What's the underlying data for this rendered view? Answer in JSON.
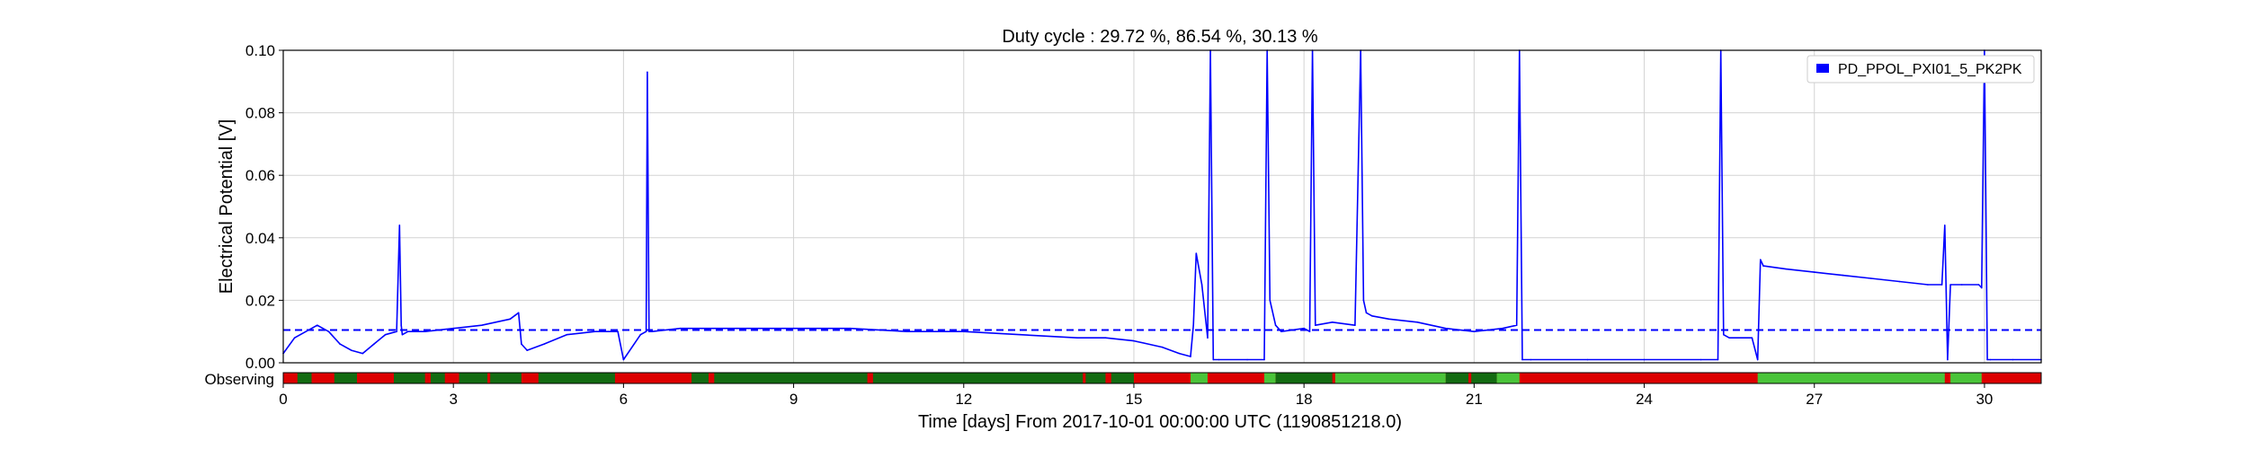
{
  "chart_data": {
    "type": "line",
    "title": "Duty cycle : 29.72 %, 86.54 %, 30.13 %",
    "xlabel": "Time [days] From 2017-10-01 00:00:00 UTC (1190851218.0)",
    "ylabel": "Electrical Potential [V]",
    "xlim": [
      0,
      31
    ],
    "ylim": [
      0,
      0.1
    ],
    "x_ticks": [
      0,
      3,
      6,
      9,
      12,
      15,
      18,
      21,
      24,
      27,
      30
    ],
    "y_ticks": [
      0.0,
      0.02,
      0.04,
      0.06,
      0.08,
      0.1
    ],
    "y_tick_labels": [
      "0.00",
      "0.02",
      "0.04",
      "0.06",
      "0.08",
      "0.10"
    ],
    "grid": true,
    "legend_position": "top-right",
    "threshold": {
      "value": 0.0105,
      "style": "dashed",
      "color": "#0000ff"
    },
    "series": [
      {
        "name": "PD_PPOL_PXI01_5_PK2PK",
        "color": "#0000ff",
        "x": [
          0.0,
          0.2,
          0.4,
          0.6,
          0.8,
          1.0,
          1.2,
          1.4,
          1.6,
          1.8,
          2.0,
          2.05,
          2.08,
          2.1,
          2.2,
          2.5,
          3.0,
          3.5,
          4.0,
          4.15,
          4.2,
          4.3,
          4.6,
          5.0,
          5.5,
          5.9,
          6.0,
          6.3,
          6.4,
          6.42,
          6.45,
          6.5,
          7.0,
          8.0,
          9.0,
          10.0,
          11.0,
          12.0,
          13.0,
          14.0,
          14.5,
          15.0,
          15.5,
          15.8,
          16.0,
          16.05,
          16.1,
          16.2,
          16.3,
          16.35,
          16.4,
          16.5,
          17.0,
          17.3,
          17.35,
          17.4,
          17.5,
          17.6,
          18.0,
          18.1,
          18.15,
          18.2,
          18.5,
          18.9,
          19.0,
          19.05,
          19.1,
          19.2,
          19.5,
          20.0,
          20.5,
          21.0,
          21.5,
          21.75,
          21.8,
          21.85,
          22.0,
          23.0,
          24.0,
          25.0,
          25.3,
          25.35,
          25.4,
          25.5,
          25.9,
          26.0,
          26.05,
          26.1,
          26.5,
          27.0,
          27.5,
          28.0,
          28.5,
          29.0,
          29.25,
          29.3,
          29.35,
          29.4,
          29.6,
          29.9,
          29.95,
          30.0,
          30.05,
          30.1,
          30.5,
          31.0
        ],
        "y": [
          0.003,
          0.008,
          0.01,
          0.012,
          0.01,
          0.006,
          0.004,
          0.003,
          0.006,
          0.009,
          0.01,
          0.044,
          0.012,
          0.009,
          0.01,
          0.01,
          0.011,
          0.012,
          0.014,
          0.016,
          0.006,
          0.004,
          0.006,
          0.009,
          0.01,
          0.01,
          0.001,
          0.009,
          0.01,
          0.093,
          0.01,
          0.01,
          0.011,
          0.011,
          0.011,
          0.011,
          0.01,
          0.01,
          0.009,
          0.008,
          0.008,
          0.007,
          0.005,
          0.003,
          0.002,
          0.012,
          0.035,
          0.025,
          0.008,
          0.1,
          0.001,
          0.001,
          0.001,
          0.001,
          0.1,
          0.02,
          0.012,
          0.01,
          0.011,
          0.01,
          0.1,
          0.012,
          0.013,
          0.012,
          0.1,
          0.02,
          0.016,
          0.015,
          0.014,
          0.013,
          0.011,
          0.01,
          0.011,
          0.012,
          0.1,
          0.001,
          0.001,
          0.001,
          0.001,
          0.001,
          0.001,
          0.1,
          0.009,
          0.008,
          0.008,
          0.001,
          0.033,
          0.031,
          0.03,
          0.029,
          0.028,
          0.027,
          0.026,
          0.025,
          0.025,
          0.044,
          0.001,
          0.025,
          0.025,
          0.025,
          0.024,
          0.1,
          0.001,
          0.001,
          0.001,
          0.001
        ]
      }
    ],
    "segments": {
      "label": "Observing",
      "colors": {
        "off": "#dd0000",
        "on": "#4ac43a",
        "flag": "#136b12"
      },
      "rows": [
        {
          "start": 0.0,
          "end": 31.0,
          "state": "off"
        },
        {
          "start": 0.25,
          "end": 0.5,
          "state": "flag"
        },
        {
          "start": 0.9,
          "end": 1.3,
          "state": "flag"
        },
        {
          "start": 1.95,
          "end": 2.5,
          "state": "flag"
        },
        {
          "start": 2.6,
          "end": 2.85,
          "state": "flag"
        },
        {
          "start": 3.1,
          "end": 3.6,
          "state": "flag"
        },
        {
          "start": 3.65,
          "end": 4.2,
          "state": "flag"
        },
        {
          "start": 4.5,
          "end": 5.85,
          "state": "flag"
        },
        {
          "start": 7.2,
          "end": 7.5,
          "state": "flag"
        },
        {
          "start": 7.6,
          "end": 8.0,
          "state": "flag"
        },
        {
          "start": 8.0,
          "end": 10.3,
          "state": "flag"
        },
        {
          "start": 10.4,
          "end": 14.1,
          "state": "flag"
        },
        {
          "start": 14.15,
          "end": 14.5,
          "state": "flag"
        },
        {
          "start": 14.6,
          "end": 15.0,
          "state": "flag"
        },
        {
          "start": 16.0,
          "end": 16.15,
          "state": "on"
        },
        {
          "start": 16.15,
          "end": 16.3,
          "state": "on"
        },
        {
          "start": 17.3,
          "end": 17.5,
          "state": "on"
        },
        {
          "start": 17.5,
          "end": 18.5,
          "state": "flag"
        },
        {
          "start": 18.55,
          "end": 20.5,
          "state": "on"
        },
        {
          "start": 20.5,
          "end": 20.9,
          "state": "flag"
        },
        {
          "start": 20.95,
          "end": 21.4,
          "state": "flag"
        },
        {
          "start": 21.4,
          "end": 21.8,
          "state": "on"
        },
        {
          "start": 26.0,
          "end": 29.3,
          "state": "on"
        },
        {
          "start": 29.4,
          "end": 29.95,
          "state": "on"
        }
      ]
    }
  }
}
